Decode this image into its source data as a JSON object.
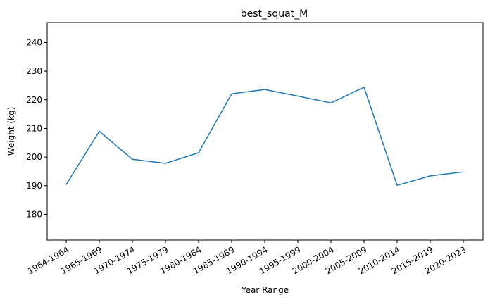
{
  "chart_data": {
    "type": "line",
    "title": "best_squat_M",
    "xlabel": "Year Range",
    "ylabel": "Weight (kg)",
    "categories": [
      "1964-1964",
      "1965-1969",
      "1970-1974",
      "1975-1979",
      "1980-1984",
      "1985-1989",
      "1990-1994",
      "1995-1999",
      "2000-2004",
      "2005-2009",
      "2010-2014",
      "2015-2019",
      "2020-2023"
    ],
    "series": [
      {
        "values": [
          190.4,
          209.0,
          199.2,
          197.8,
          201.5,
          222.1,
          223.6,
          221.3,
          218.9,
          224.4,
          190.1,
          193.4,
          194.8
        ],
        "color": "#1f77b4"
      }
    ],
    "ylim": [
      171,
      247
    ],
    "yticks": [
      180,
      190,
      200,
      210,
      220,
      230,
      240
    ],
    "grid": false,
    "x_tick_rotation": -30
  }
}
